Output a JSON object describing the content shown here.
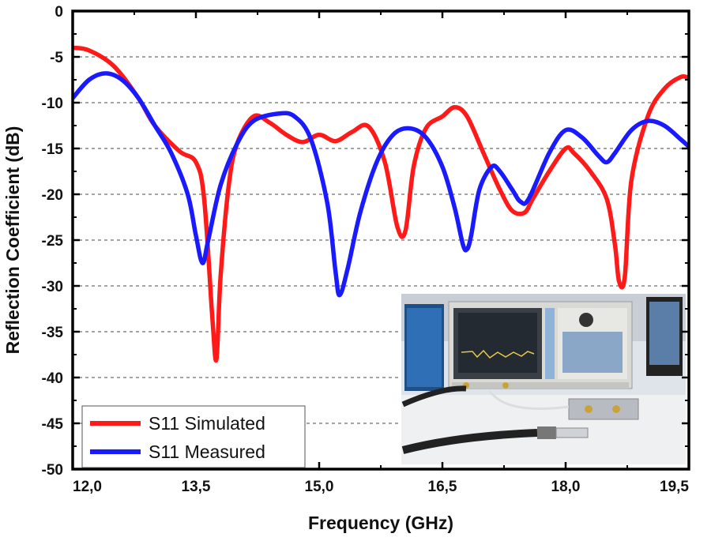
{
  "chart_data": {
    "type": "line",
    "xlabel": "Frequency (GHz)",
    "ylabel": "Reflection Coefficient (dB)",
    "xlim": [
      12.0,
      19.5
    ],
    "ylim": [
      -50,
      0
    ],
    "xticks": [
      12.0,
      13.5,
      15.0,
      16.5,
      18.0,
      19.5
    ],
    "xtick_labels": [
      "12,0",
      "13,5",
      "15,0",
      "16,5",
      "18,0",
      "19,5"
    ],
    "yticks": [
      0,
      -5,
      -10,
      -15,
      -20,
      -25,
      -30,
      -35,
      -40,
      -45,
      -50
    ],
    "ytick_labels": [
      "0",
      "-5",
      "-10",
      "-15",
      "-20",
      "-25",
      "-30",
      "-35",
      "-40",
      "-45",
      "-50"
    ],
    "grid": "horizontal dashed",
    "legend_position": "bottom-left",
    "series": [
      {
        "name": "S11 Simulated",
        "color": "#ff1a1a",
        "x": [
          12.0,
          12.2,
          12.5,
          12.8,
          13.0,
          13.3,
          13.5,
          13.6,
          13.7,
          13.75,
          13.8,
          13.9,
          14.0,
          14.2,
          14.4,
          14.6,
          14.8,
          15.0,
          15.2,
          15.4,
          15.6,
          15.8,
          15.95,
          16.05,
          16.15,
          16.3,
          16.5,
          16.65,
          16.8,
          17.0,
          17.2,
          17.35,
          17.5,
          17.6,
          17.8,
          18.0,
          18.1,
          18.3,
          18.5,
          18.6,
          18.65,
          18.72,
          18.8,
          19.0,
          19.2,
          19.4,
          19.5
        ],
        "y": [
          -4.0,
          -4.3,
          -6.0,
          -9.5,
          -12.5,
          -15.3,
          -16.5,
          -20.5,
          -33.5,
          -38.0,
          -29.0,
          -19.0,
          -14.5,
          -11.5,
          -12.2,
          -13.5,
          -14.3,
          -13.5,
          -14.2,
          -13.2,
          -12.6,
          -16.5,
          -23.5,
          -24.0,
          -17.0,
          -12.8,
          -11.5,
          -10.5,
          -11.5,
          -15.5,
          -19.5,
          -21.8,
          -22.0,
          -20.5,
          -17.5,
          -15.0,
          -15.5,
          -17.5,
          -20.5,
          -25.5,
          -29.5,
          -29.0,
          -18.5,
          -11.5,
          -8.5,
          -7.2,
          -7.3
        ]
      },
      {
        "name": "S11 Measured",
        "color": "#1a1aff",
        "x": [
          12.0,
          12.2,
          12.4,
          12.6,
          12.8,
          13.0,
          13.2,
          13.4,
          13.5,
          13.58,
          13.65,
          13.8,
          14.0,
          14.2,
          14.5,
          14.7,
          14.9,
          15.1,
          15.2,
          15.25,
          15.35,
          15.5,
          15.7,
          15.9,
          16.1,
          16.3,
          16.5,
          16.65,
          16.75,
          16.8,
          16.85,
          16.95,
          17.1,
          17.2,
          17.35,
          17.45,
          17.55,
          17.8,
          18.0,
          18.2,
          18.4,
          18.5,
          18.6,
          18.8,
          19.0,
          19.2,
          19.4,
          19.5
        ],
        "y": [
          -9.5,
          -7.5,
          -6.8,
          -7.5,
          -9.5,
          -12.5,
          -15.5,
          -20.0,
          -24.5,
          -27.5,
          -25.0,
          -19.0,
          -14.5,
          -12.0,
          -11.2,
          -11.5,
          -14.0,
          -21.0,
          -28.5,
          -31.0,
          -28.0,
          -22.0,
          -16.5,
          -13.5,
          -12.8,
          -13.8,
          -17.0,
          -21.5,
          -25.5,
          -26.0,
          -24.5,
          -19.5,
          -17.0,
          -17.5,
          -19.5,
          -20.8,
          -20.5,
          -15.5,
          -13.0,
          -13.8,
          -15.8,
          -16.5,
          -15.5,
          -13.0,
          -12.0,
          -12.5,
          -14.0,
          -14.8
        ]
      }
    ]
  }
}
